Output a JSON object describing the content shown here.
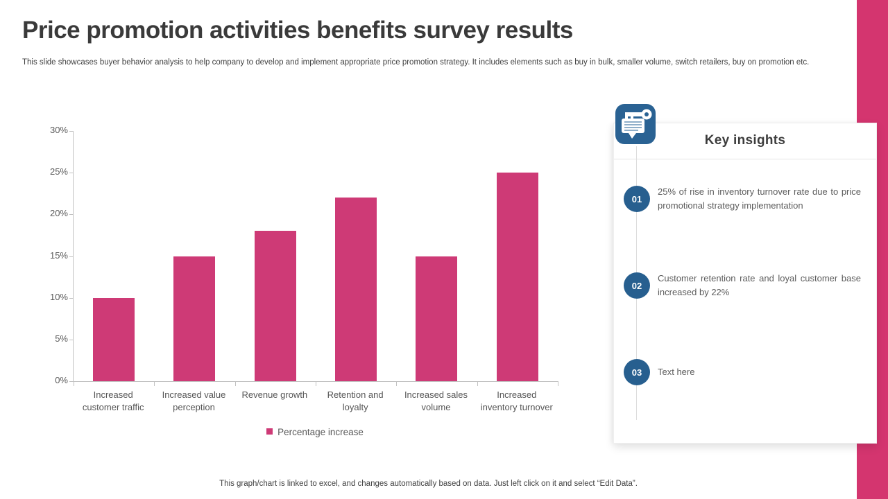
{
  "slide": {
    "title": "Price promotion activities benefits survey results",
    "subtitle": "This slide showcases buyer behavior analysis to help company to develop and implement appropriate price promotion strategy. It includes elements such as buy in bulk, smaller volume, switch retailers, buy on promotion etc.",
    "footer": "This graph/chart is linked to excel,  and changes automatically based on data. Just left click on it and select “Edit Data”."
  },
  "chart_data": {
    "type": "bar",
    "categories": [
      "Increased customer traffic",
      "Increased value perception",
      "Revenue growth",
      "Retention and loyalty",
      "Increased sales volume",
      "Increased inventory turnover"
    ],
    "series": [
      {
        "name": "Percentage increase",
        "values": [
          10,
          15,
          18,
          22,
          15,
          25
        ]
      }
    ],
    "title": "",
    "xlabel": "",
    "ylabel": "",
    "ylim": [
      0,
      30
    ],
    "yticks": [
      0,
      5,
      10,
      15,
      20,
      25,
      30
    ],
    "ytick_suffix": "%",
    "grid": false,
    "legend_position": "bottom"
  },
  "insights": {
    "title": "Key insights",
    "icon": "note-with-key-icon",
    "items": [
      {
        "number": "01",
        "text": "25% of rise in inventory turnover rate due to price promotional strategy implementation"
      },
      {
        "number": "02",
        "text": "Customer retention rate and loyal customer base increased by 22%"
      },
      {
        "number": "03",
        "text": "Text here"
      }
    ]
  },
  "colors": {
    "bar_pink": "#CE3A76",
    "band_pink": "#D4356F",
    "badge_blue": "#275F8F",
    "icon_blue": "#2A6293",
    "axis_gray": "#C1C1C1",
    "title_gray": "#3A3A3A",
    "body_gray": "#5C5C5C"
  }
}
